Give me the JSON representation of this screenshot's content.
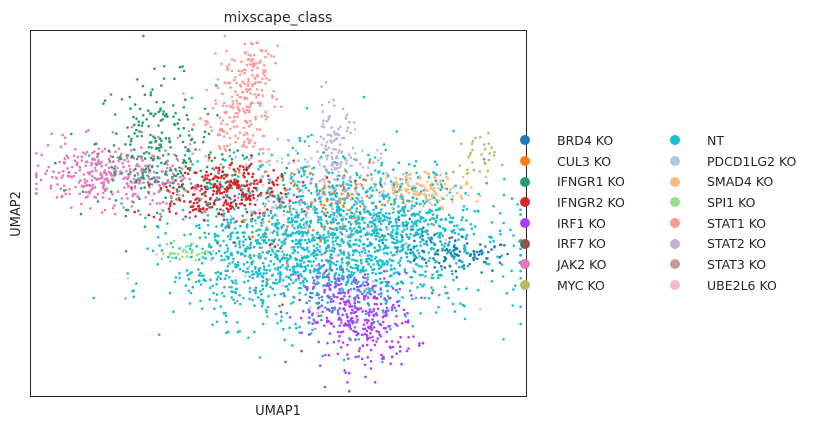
{
  "chart_data": {
    "type": "scatter",
    "title": "mixscape_class",
    "xlabel": "UMAP1",
    "ylabel": "UMAP2",
    "xlim": [
      0,
      100
    ],
    "ylim": [
      0,
      100
    ],
    "grid": false,
    "legend_position": "right",
    "series": [
      {
        "name": "BRD4 KO",
        "color": "#1f77b4",
        "clusters": [
          {
            "cx": 88,
            "cy": 38,
            "sx": 5,
            "sy": 2.2,
            "n": 70
          },
          {
            "cx": 80,
            "cy": 41,
            "sx": 5,
            "sy": 3,
            "n": 35
          }
        ]
      },
      {
        "name": "CUL3 KO",
        "color": "#ff7f0e",
        "clusters": [
          {
            "cx": 58,
            "cy": 54,
            "sx": 7,
            "sy": 7,
            "n": 55
          },
          {
            "cx": 63,
            "cy": 55,
            "sx": 3,
            "sy": 3,
            "n": 20
          }
        ]
      },
      {
        "name": "IFNGR1 KO",
        "color": "#279e68",
        "clusters": [
          {
            "cx": 25,
            "cy": 70,
            "sx": 6,
            "sy": 9,
            "n": 200
          },
          {
            "cx": 30,
            "cy": 60,
            "sx": 9,
            "sy": 4,
            "n": 90
          }
        ]
      },
      {
        "name": "IFNGR2 KO",
        "color": "#d62728",
        "clusters": [
          {
            "cx": 41,
            "cy": 57,
            "sx": 6,
            "sy": 3.8,
            "n": 230
          },
          {
            "cx": 33,
            "cy": 54,
            "sx": 5,
            "sy": 3,
            "n": 70
          }
        ]
      },
      {
        "name": "IRF1 KO",
        "color": "#aa40fc",
        "clusters": [
          {
            "cx": 67,
            "cy": 20,
            "sx": 5.5,
            "sy": 6.5,
            "n": 300
          },
          {
            "cx": 62,
            "cy": 28,
            "sx": 4.5,
            "sy": 4,
            "n": 80
          }
        ]
      },
      {
        "name": "IRF7 KO",
        "color": "#8c564b",
        "clusters": [
          {
            "cx": 52,
            "cy": 46,
            "sx": 12,
            "sy": 9,
            "n": 25
          }
        ]
      },
      {
        "name": "JAK2 KO",
        "color": "#e377c2",
        "clusters": [
          {
            "cx": 14,
            "cy": 61,
            "sx": 7,
            "sy": 4.5,
            "n": 280
          },
          {
            "cx": 25,
            "cy": 58,
            "sx": 6,
            "sy": 3.5,
            "n": 70
          }
        ]
      },
      {
        "name": "MYC KO",
        "color": "#b5bd61",
        "clusters": [
          {
            "cx": 90,
            "cy": 65,
            "sx": 2.2,
            "sy": 3.5,
            "n": 30
          }
        ]
      },
      {
        "name": "NT",
        "color": "#17becf",
        "clusters": [
          {
            "cx": 62,
            "cy": 43,
            "sx": 15,
            "sy": 11,
            "n": 1500
          },
          {
            "cx": 75,
            "cy": 47,
            "sx": 9,
            "sy": 6,
            "n": 220
          },
          {
            "cx": 48,
            "cy": 35,
            "sx": 10,
            "sy": 7,
            "n": 300
          }
        ]
      },
      {
        "name": "PDCD1LG2 KO",
        "color": "#aec7e8",
        "clusters": [
          {
            "cx": 55,
            "cy": 58,
            "sx": 7,
            "sy": 8,
            "n": 80
          },
          {
            "cx": 66,
            "cy": 58,
            "sx": 4,
            "sy": 8,
            "n": 40
          }
        ]
      },
      {
        "name": "SMAD4 KO",
        "color": "#ffbb78",
        "clusters": [
          {
            "cx": 80,
            "cy": 57,
            "sx": 5,
            "sy": 2.3,
            "n": 140
          }
        ]
      },
      {
        "name": "SPI1 KO",
        "color": "#98df8a",
        "clusters": [
          {
            "cx": 31,
            "cy": 39,
            "sx": 2.8,
            "sy": 1.4,
            "n": 35
          }
        ]
      },
      {
        "name": "STAT1 KO",
        "color": "#ff9896",
        "clusters": [
          {
            "cx": 43,
            "cy": 82,
            "sx": 3.2,
            "sy": 8,
            "n": 150
          },
          {
            "cx": 45,
            "cy": 90,
            "sx": 2,
            "sy": 5,
            "n": 50
          },
          {
            "cx": 38,
            "cy": 72,
            "sx": 5,
            "sy": 4,
            "n": 60
          }
        ]
      },
      {
        "name": "STAT2 KO",
        "color": "#c5b0d5",
        "clusters": [
          {
            "cx": 61,
            "cy": 67,
            "sx": 2.2,
            "sy": 7,
            "n": 100
          },
          {
            "cx": 63,
            "cy": 58,
            "sx": 5,
            "sy": 5,
            "n": 40
          }
        ]
      },
      {
        "name": "STAT3 KO",
        "color": "#c49c94",
        "clusters": [
          {
            "cx": 52,
            "cy": 44,
            "sx": 14,
            "sy": 10,
            "n": 40
          }
        ]
      },
      {
        "name": "UBE2L6 KO",
        "color": "#f7b6d2",
        "clusters": [
          {
            "cx": 60,
            "cy": 45,
            "sx": 16,
            "sy": 12,
            "n": 80
          }
        ]
      }
    ]
  }
}
